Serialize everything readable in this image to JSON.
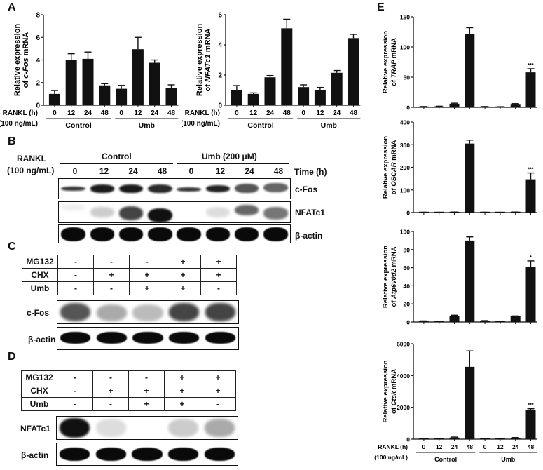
{
  "panels": {
    "A": {
      "letter": "A"
    },
    "B": {
      "letter": "B"
    },
    "C": {
      "letter": "C"
    },
    "D": {
      "letter": "D"
    },
    "E": {
      "letter": "E"
    }
  },
  "xaxis": {
    "rankl_label": "RANKL (h)",
    "rankl_conc": "(100 ng/mL)",
    "ticks": [
      "0",
      "12",
      "24",
      "48",
      "0",
      "12",
      "24",
      "48"
    ],
    "group_control": "Control",
    "group_umb": "Umb"
  },
  "blot_B": {
    "rankl": "RANKL",
    "conc": "(100 ng/mL)",
    "group_control": "Control",
    "group_umb": "Umb (200 μM)",
    "time_label": "Time (h)",
    "times": [
      "0",
      "12",
      "24",
      "48",
      "0",
      "12",
      "24",
      "48"
    ],
    "rows": [
      "c-Fos",
      "NFATc1",
      "β-actin"
    ]
  },
  "blot_C": {
    "treatments": [
      {
        "name": "MG132",
        "values": [
          "-",
          "-",
          "-",
          "+",
          "+"
        ]
      },
      {
        "name": "CHX",
        "values": [
          "-",
          "+",
          "+",
          "+",
          "+"
        ]
      },
      {
        "name": "Umb",
        "values": [
          "-",
          "-",
          "+",
          "+",
          "-"
        ]
      }
    ],
    "rows": [
      "c-Fos",
      "β-actin"
    ]
  },
  "blot_D": {
    "treatments": [
      {
        "name": "MG132",
        "values": [
          "-",
          "-",
          "-",
          "+",
          "+"
        ]
      },
      {
        "name": "CHX",
        "values": [
          "-",
          "+",
          "+",
          "+",
          "+"
        ]
      },
      {
        "name": "Umb",
        "values": [
          "-",
          "-",
          "+",
          "+",
          "-"
        ]
      }
    ],
    "rows": [
      "NFATc1",
      "β-actin"
    ]
  },
  "chart_data": [
    {
      "id": "A-cFos",
      "type": "bar",
      "title": "",
      "ylabel": "Relative expression of c-Fos mRNA",
      "ylabel_line1": "Relative expression",
      "ylabel_line2": "of c-Fos mRNA",
      "categories": [
        "Control 0",
        "Control 12",
        "Control 24",
        "Control 48",
        "Umb 0",
        "Umb 12",
        "Umb 24",
        "Umb 48"
      ],
      "values": [
        1.0,
        4.0,
        4.1,
        1.75,
        1.45,
        4.95,
        3.75,
        1.55
      ],
      "errors": [
        0.3,
        0.55,
        0.6,
        0.15,
        0.3,
        1.05,
        0.25,
        0.25
      ],
      "ylim": [
        0,
        8
      ],
      "yticks": [
        "0",
        "2",
        "4",
        "6",
        "8"
      ],
      "significance": [
        "",
        "",
        "",
        "",
        "",
        "",
        "",
        ""
      ]
    },
    {
      "id": "A-NFATc1",
      "type": "bar",
      "ylabel": "Relative expression of NFATc1 mRNA",
      "ylabel_line1": "Relative expression",
      "ylabel_line2": "of NFATc1 mRNA",
      "categories": [
        "Control 0",
        "Control 12",
        "Control 24",
        "Control 48",
        "Umb 0",
        "Umb 12",
        "Umb 24",
        "Umb 48"
      ],
      "values": [
        1.0,
        0.75,
        1.85,
        5.1,
        1.2,
        1.0,
        2.15,
        4.45
      ],
      "errors": [
        0.3,
        0.07,
        0.12,
        0.6,
        0.15,
        0.18,
        0.15,
        0.25
      ],
      "ylim": [
        0,
        6
      ],
      "yticks": [
        "0",
        "2",
        "4",
        "6"
      ],
      "significance": [
        "",
        "",
        "",
        "",
        "",
        "",
        "",
        ""
      ]
    },
    {
      "id": "E-TRAP",
      "type": "bar",
      "ylabel": "Relative expression of TRAP mRNA",
      "ylabel_line1": "Relative expression",
      "ylabel_line2": "of TRAP mRNA",
      "categories": [
        "Control 0",
        "Control 12",
        "Control 24",
        "Control 48",
        "Umb 0",
        "Umb 12",
        "Umb 24",
        "Umb 48"
      ],
      "values": [
        1,
        1.5,
        6,
        121,
        1,
        0.8,
        5.5,
        58
      ],
      "errors": [
        0.3,
        0.4,
        0.8,
        11,
        0.3,
        0.2,
        0.6,
        6
      ],
      "ylim": [
        0,
        150
      ],
      "yticks": [
        "0",
        "50",
        "100",
        "150"
      ],
      "significance": [
        "",
        "",
        "",
        "",
        "",
        "",
        "",
        "***"
      ]
    },
    {
      "id": "E-OSCAR",
      "type": "bar",
      "ylabel": "Relative expression of OSCAR mRNA",
      "ylabel_line1": "Relative expression",
      "ylabel_line2": "of OSCAR mRNA",
      "categories": [
        "Control 0",
        "Control 12",
        "Control 24",
        "Control 48",
        "Umb 0",
        "Umb 12",
        "Umb 24",
        "Umb 48"
      ],
      "values": [
        1,
        0.8,
        2,
        305,
        1,
        0.5,
        2,
        147
      ],
      "errors": [
        0.3,
        0.2,
        0.5,
        15,
        0.3,
        0.1,
        0.5,
        28
      ],
      "ylim": [
        0,
        400
      ],
      "yticks": [
        "0",
        "100",
        "200",
        "300",
        "400"
      ],
      "significance": [
        "",
        "",
        "",
        "",
        "",
        "",
        "",
        "***"
      ]
    },
    {
      "id": "E-Atp6v0d2",
      "type": "bar",
      "ylabel": "Relative expression of Atp6v0d2 mRNA",
      "ylabel_line1": "Relative expression",
      "ylabel_line2": "of Atp6v0d2 mRNA",
      "categories": [
        "Control 0",
        "Control 12",
        "Control 24",
        "Control 48",
        "Umb 0",
        "Umb 12",
        "Umb 24",
        "Umb 48"
      ],
      "values": [
        1,
        0.8,
        7,
        90,
        1.2,
        0.8,
        6.2,
        61
      ],
      "errors": [
        0.2,
        0.2,
        0.5,
        4,
        0.3,
        0.2,
        0.5,
        6.5
      ],
      "ylim": [
        0,
        100
      ],
      "yticks": [
        "0",
        "20",
        "40",
        "60",
        "80",
        "100"
      ],
      "significance": [
        "",
        "",
        "",
        "",
        "",
        "",
        "",
        "*"
      ]
    },
    {
      "id": "E-Ctsk",
      "type": "bar",
      "ylabel": "Relative expression of Ctsk mRNA",
      "ylabel_line1": "Relative expression",
      "ylabel_line2": "of Ctsk mRNA",
      "categories": [
        "Control 0",
        "Control 12",
        "Control 24",
        "Control 48",
        "Umb 0",
        "Umb 12",
        "Umb 24",
        "Umb 48"
      ],
      "values": [
        1,
        5,
        100,
        4550,
        1,
        5,
        80,
        1850
      ],
      "errors": [
        0,
        2,
        30,
        1000,
        0,
        2,
        20,
        60
      ],
      "ylim": [
        0,
        6000
      ],
      "yticks": [
        "0",
        "2000",
        "4000",
        "6000"
      ],
      "significance": [
        "",
        "",
        "",
        "",
        "",
        "",
        "",
        "***"
      ]
    }
  ]
}
